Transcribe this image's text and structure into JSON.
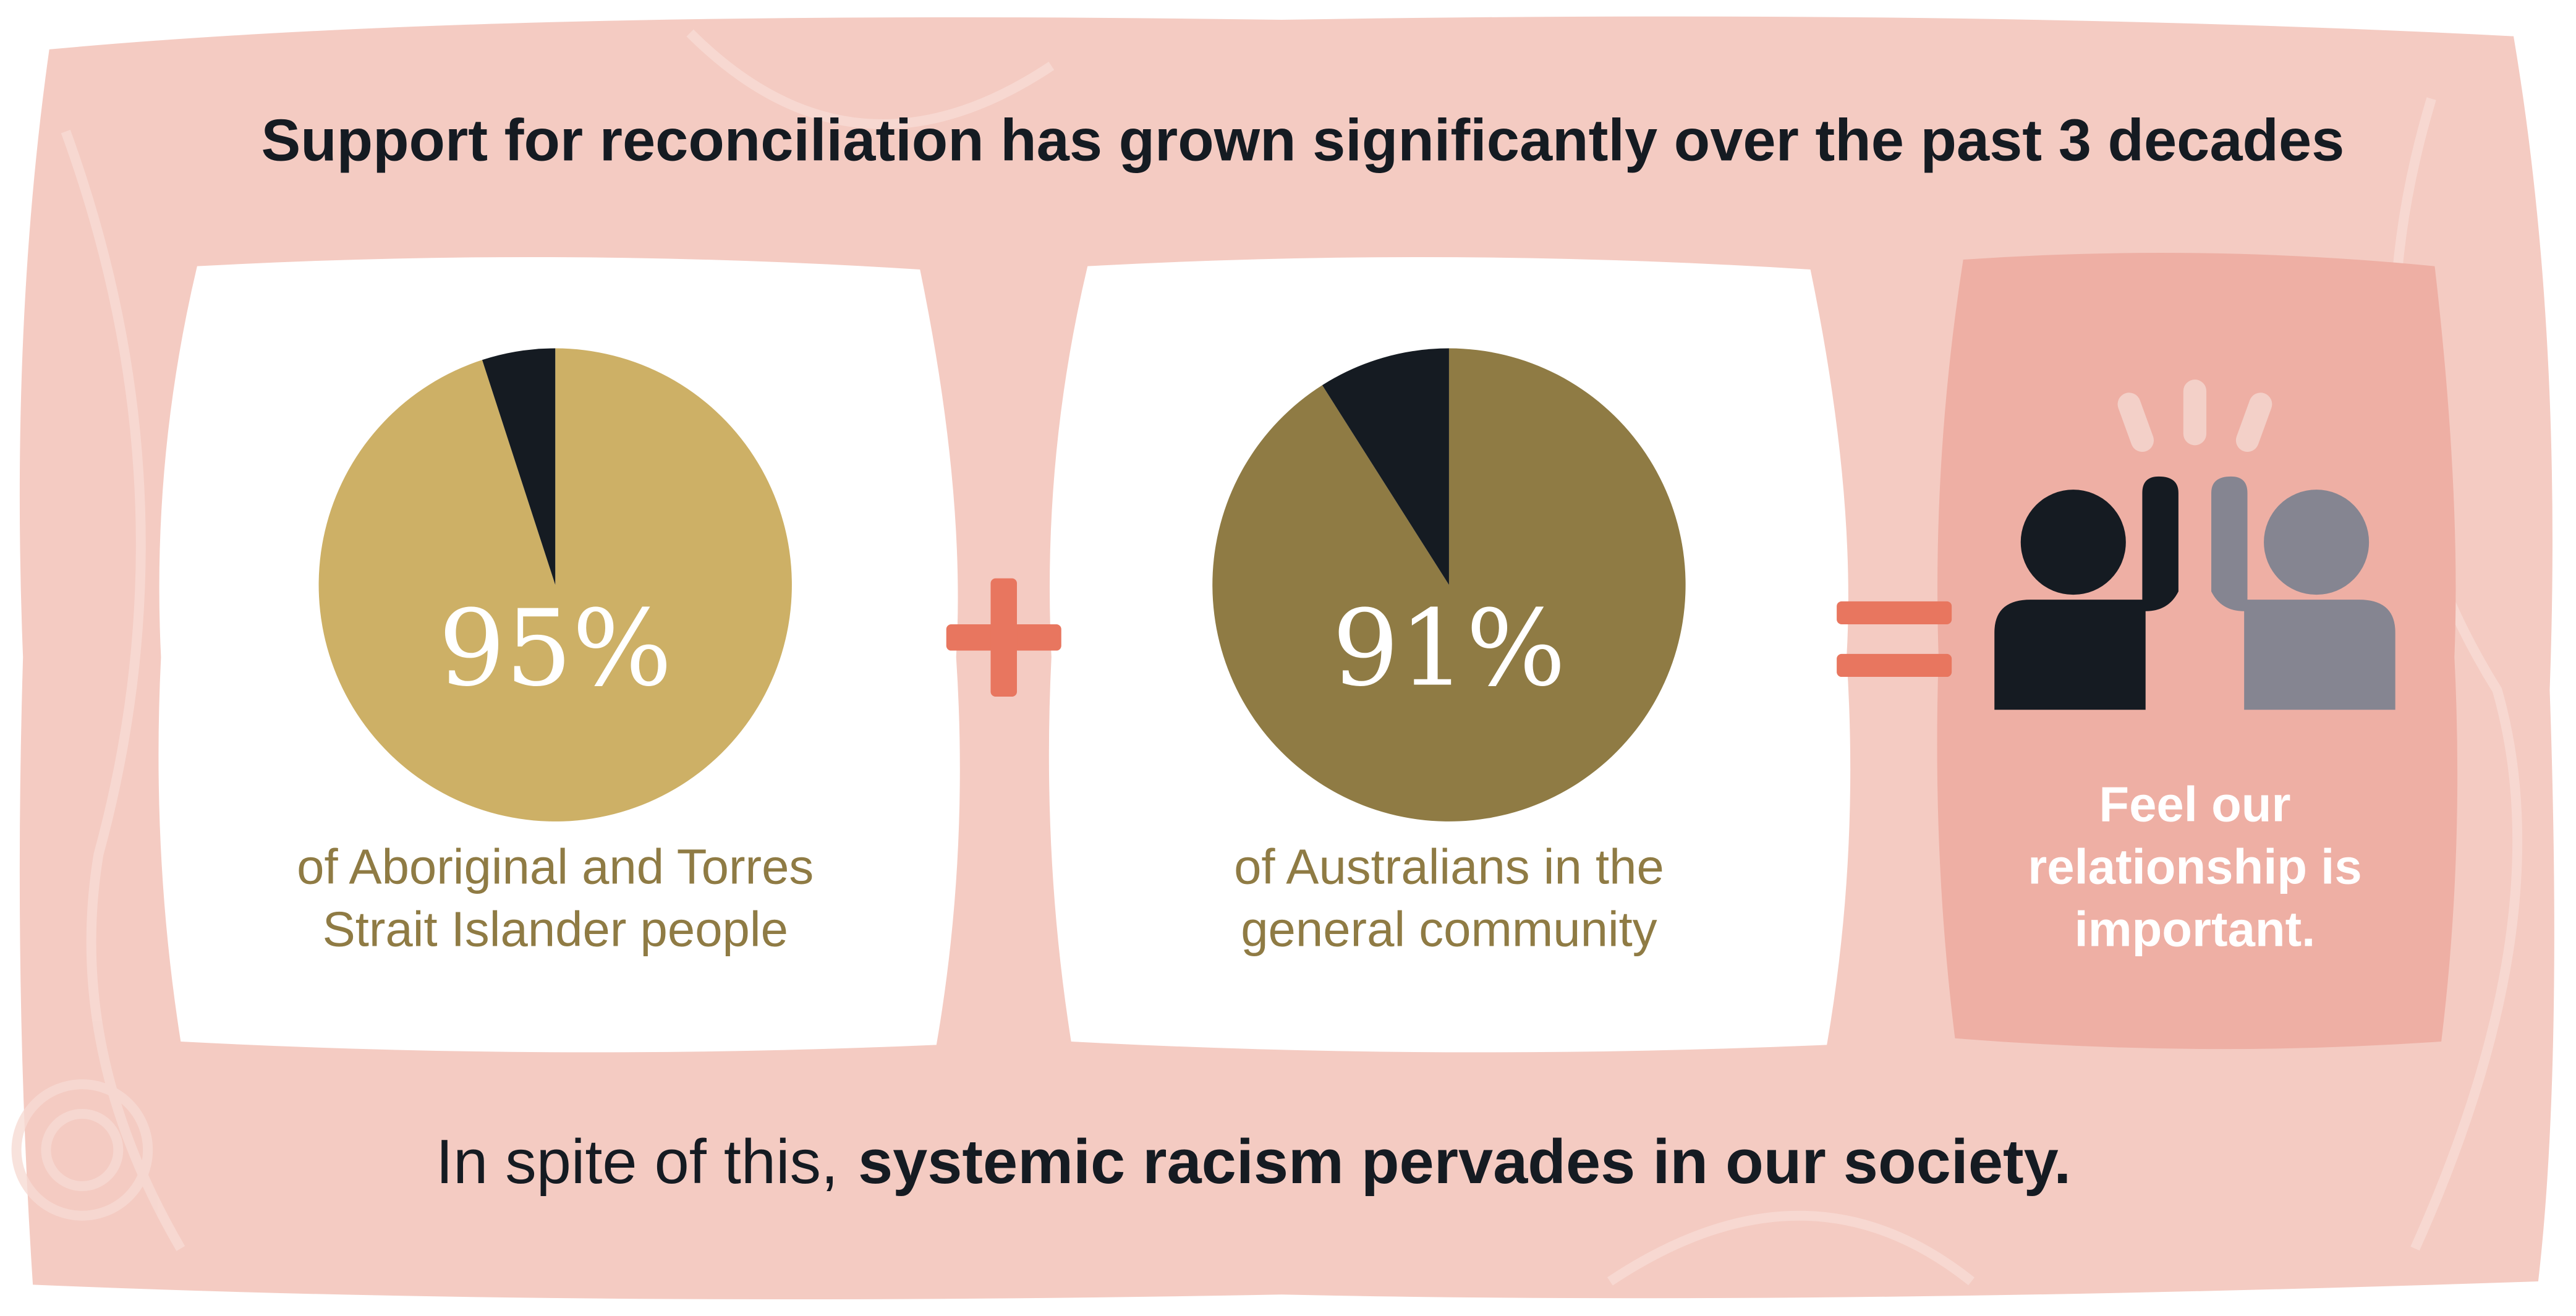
{
  "title": "Support for reconciliation has grown significantly over the past 3 decades",
  "chart_data": [
    {
      "type": "pie",
      "values": [
        95,
        5
      ],
      "value_labels": [
        "95%",
        null
      ],
      "colors": [
        "#cdb066",
        "#151b22"
      ],
      "caption": [
        "of Aboriginal and Torres",
        "Strait Islander people"
      ]
    },
    {
      "type": "pie",
      "values": [
        91,
        9
      ],
      "value_labels": [
        "91%",
        null
      ],
      "colors": [
        "#8f7b44",
        "#151b22"
      ],
      "caption": [
        "of Australians in the",
        "general community"
      ]
    }
  ],
  "result": {
    "lines": [
      "Feel our",
      "relationship is",
      "important."
    ]
  },
  "footer": {
    "plain": "In spite of this,",
    "bold": "systemic racism pervades in our society."
  }
}
